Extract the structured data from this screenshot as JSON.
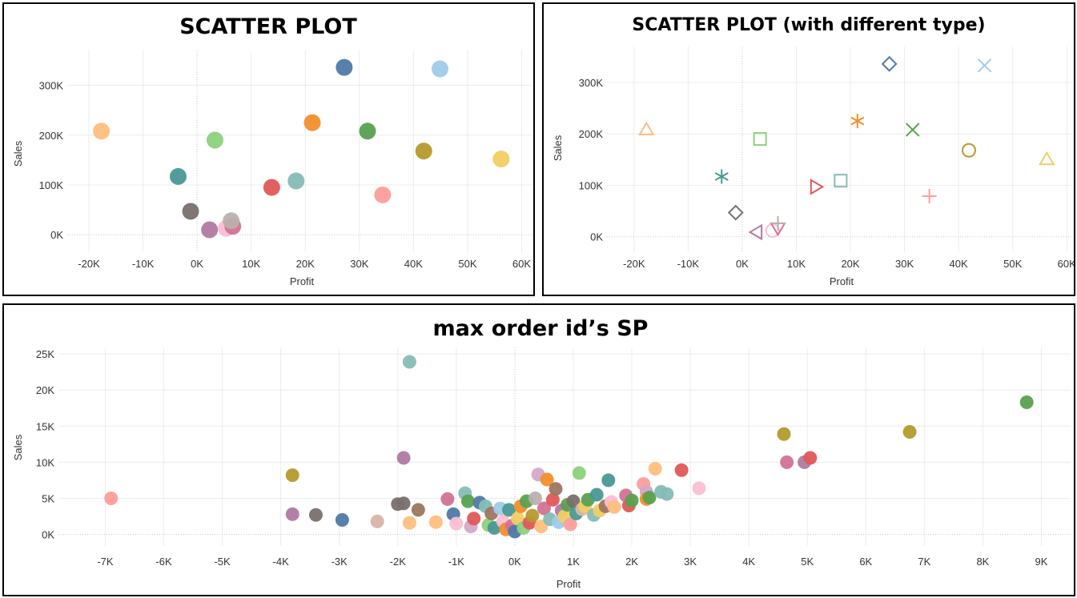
{
  "chart_data": [
    {
      "type": "scatter",
      "title": "SCATTER PLOT",
      "xlabel": "Profit",
      "ylabel": "Sales",
      "xlim": [
        -24000,
        62000
      ],
      "ylim": [
        -35000,
        370000
      ],
      "xticks": [
        -20000,
        -10000,
        0,
        10000,
        20000,
        30000,
        40000,
        50000,
        60000
      ],
      "xtick_labels": [
        "-20K",
        "-10K",
        "0K",
        "10K",
        "20K",
        "30K",
        "40K",
        "50K",
        "60K"
      ],
      "yticks": [
        0,
        100000,
        200000,
        300000
      ],
      "ytick_labels": [
        "0K",
        "100K",
        "200K",
        "300K"
      ],
      "grid": true,
      "legend": "none",
      "points": [
        {
          "x": -17700,
          "y": 208000,
          "color": "#ffbe7d"
        },
        {
          "x": -3500,
          "y": 117000,
          "color": "#499894"
        },
        {
          "x": -1200,
          "y": 47000,
          "color": "#79706e"
        },
        {
          "x": 2300,
          "y": 10000,
          "color": "#b07aa1"
        },
        {
          "x": 3300,
          "y": 190000,
          "color": "#8cd17d"
        },
        {
          "x": 5400,
          "y": 13000,
          "color": "#fabfd2"
        },
        {
          "x": 6600,
          "y": 17000,
          "color": "#d37295"
        },
        {
          "x": 6300,
          "y": 28000,
          "color": "#bab0ac"
        },
        {
          "x": 13800,
          "y": 95000,
          "color": "#e15759"
        },
        {
          "x": 18300,
          "y": 108000,
          "color": "#86bcb6"
        },
        {
          "x": 21300,
          "y": 225000,
          "color": "#f28e2b"
        },
        {
          "x": 27200,
          "y": 336000,
          "color": "#4e79a7"
        },
        {
          "x": 31500,
          "y": 208000,
          "color": "#59a14f"
        },
        {
          "x": 34300,
          "y": 80000,
          "color": "#ff9d9a"
        },
        {
          "x": 41900,
          "y": 168000,
          "color": "#b6992d"
        },
        {
          "x": 44900,
          "y": 333000,
          "color": "#a0cbe8"
        },
        {
          "x": 56200,
          "y": 152000,
          "color": "#f1ce63"
        }
      ]
    },
    {
      "type": "scatter",
      "title": "SCATTER PLOT (with different type)",
      "xlabel": "Profit",
      "ylabel": "Sales",
      "xlim": [
        -25000,
        61000
      ],
      "ylim": [
        -30000,
        370000
      ],
      "xticks": [
        -20000,
        -10000,
        0,
        10000,
        20000,
        30000,
        40000,
        50000,
        60000
      ],
      "xtick_labels": [
        "-20K",
        "-10K",
        "0K",
        "10K",
        "20K",
        "30K",
        "40K",
        "50K",
        "60K"
      ],
      "yticks": [
        0,
        100000,
        200000,
        300000
      ],
      "ytick_labels": [
        "0K",
        "100K",
        "200K",
        "300K"
      ],
      "grid": true,
      "legend": "none",
      "points": [
        {
          "x": -17700,
          "y": 208000,
          "color": "#ffbe7d",
          "shape": "triangle-up"
        },
        {
          "x": -3800,
          "y": 117000,
          "color": "#499894",
          "shape": "asterisk"
        },
        {
          "x": -1200,
          "y": 47000,
          "color": "#79706e",
          "shape": "diamond"
        },
        {
          "x": 3300,
          "y": 190000,
          "color": "#8cd17d",
          "shape": "square"
        },
        {
          "x": 2700,
          "y": 9000,
          "color": "#b07aa1",
          "shape": "triangle-left"
        },
        {
          "x": 5600,
          "y": 12000,
          "color": "#fabfd2",
          "shape": "circle"
        },
        {
          "x": 6600,
          "y": 17000,
          "color": "#d37295",
          "shape": "triangle-down"
        },
        {
          "x": 6600,
          "y": 26000,
          "color": "#bab0ac",
          "shape": "plus"
        },
        {
          "x": 13600,
          "y": 97000,
          "color": "#e15759",
          "shape": "triangle-right"
        },
        {
          "x": 18200,
          "y": 109000,
          "color": "#86bcb6",
          "shape": "square"
        },
        {
          "x": 21300,
          "y": 225000,
          "color": "#f28e2b",
          "shape": "asterisk"
        },
        {
          "x": 27200,
          "y": 336000,
          "color": "#4e79a7",
          "shape": "diamond"
        },
        {
          "x": 31500,
          "y": 208000,
          "color": "#59a14f",
          "shape": "cross"
        },
        {
          "x": 34600,
          "y": 79000,
          "color": "#ff9d9a",
          "shape": "plus"
        },
        {
          "x": 41900,
          "y": 168000,
          "color": "#b6992d",
          "shape": "circle"
        },
        {
          "x": 44800,
          "y": 333000,
          "color": "#a0cbe8",
          "shape": "cross"
        },
        {
          "x": 56300,
          "y": 150000,
          "color": "#f1ce63",
          "shape": "triangle-up"
        }
      ]
    },
    {
      "type": "scatter",
      "title": "max order id’s SP",
      "xlabel": "Profit",
      "ylabel": "Sales",
      "xlim": [
        -7800,
        9500
      ],
      "ylim": [
        -1600,
        25900
      ],
      "xticks": [
        -7000,
        -6000,
        -5000,
        -4000,
        -3000,
        -2000,
        -1000,
        0,
        1000,
        2000,
        3000,
        4000,
        5000,
        6000,
        7000,
        8000,
        9000
      ],
      "xtick_labels": [
        "-7K",
        "-6K",
        "-5K",
        "-4K",
        "-3K",
        "-2K",
        "-1K",
        "0K",
        "1K",
        "2K",
        "3K",
        "4K",
        "5K",
        "6K",
        "7K",
        "8K",
        "9K"
      ],
      "yticks": [
        0,
        5000,
        10000,
        15000,
        20000,
        25000
      ],
      "ytick_labels": [
        "0K",
        "5K",
        "10K",
        "15K",
        "20K",
        "25K"
      ],
      "grid": true,
      "legend": "none",
      "points": [
        {
          "x": -6900,
          "y": 5000,
          "color": "#ff9d9a"
        },
        {
          "x": -3800,
          "y": 8200,
          "color": "#b6992d"
        },
        {
          "x": -3800,
          "y": 2800,
          "color": "#b07aa1"
        },
        {
          "x": -3400,
          "y": 2700,
          "color": "#79706e"
        },
        {
          "x": -2950,
          "y": 2000,
          "color": "#4e79a7"
        },
        {
          "x": -2350,
          "y": 1800,
          "color": "#d7b5a6"
        },
        {
          "x": -2000,
          "y": 4200,
          "color": "#79706e"
        },
        {
          "x": -1900,
          "y": 4300,
          "color": "#79706e"
        },
        {
          "x": -1900,
          "y": 10600,
          "color": "#b07aa1"
        },
        {
          "x": -1800,
          "y": 23900,
          "color": "#86bcb6"
        },
        {
          "x": -1800,
          "y": 1600,
          "color": "#ffbe7d"
        },
        {
          "x": -1650,
          "y": 3400,
          "color": "#9d7660"
        },
        {
          "x": -1350,
          "y": 1700,
          "color": "#ffbe7d"
        },
        {
          "x": -1150,
          "y": 4900,
          "color": "#d37295"
        },
        {
          "x": -1050,
          "y": 2800,
          "color": "#4e79a7"
        },
        {
          "x": -1000,
          "y": 1500,
          "color": "#fabfd2"
        },
        {
          "x": -850,
          "y": 5700,
          "color": "#86bcb6"
        },
        {
          "x": -800,
          "y": 4600,
          "color": "#59a14f"
        },
        {
          "x": -750,
          "y": 1100,
          "color": "#d4a6c8"
        },
        {
          "x": -700,
          "y": 2200,
          "color": "#e15759"
        },
        {
          "x": -600,
          "y": 4400,
          "color": "#4e79a7"
        },
        {
          "x": -500,
          "y": 3900,
          "color": "#86bcb6"
        },
        {
          "x": -450,
          "y": 1300,
          "color": "#8cd17d"
        },
        {
          "x": -400,
          "y": 2900,
          "color": "#9d7660"
        },
        {
          "x": -350,
          "y": 900,
          "color": "#499894"
        },
        {
          "x": -250,
          "y": 3600,
          "color": "#a0cbe8"
        },
        {
          "x": -200,
          "y": 1800,
          "color": "#fabfd2"
        },
        {
          "x": -150,
          "y": 700,
          "color": "#f28e2b"
        },
        {
          "x": -100,
          "y": 3400,
          "color": "#499894"
        },
        {
          "x": -50,
          "y": 1200,
          "color": "#d37295"
        },
        {
          "x": 0,
          "y": 400,
          "color": "#4e79a7"
        },
        {
          "x": 50,
          "y": 2200,
          "color": "#f1ce63"
        },
        {
          "x": 100,
          "y": 3900,
          "color": "#f28e2b"
        },
        {
          "x": 150,
          "y": 900,
          "color": "#8cd17d"
        },
        {
          "x": 200,
          "y": 4600,
          "color": "#59a14f"
        },
        {
          "x": 250,
          "y": 1600,
          "color": "#e15759"
        },
        {
          "x": 300,
          "y": 2600,
          "color": "#b6992d"
        },
        {
          "x": 350,
          "y": 5000,
          "color": "#bab0ac"
        },
        {
          "x": 400,
          "y": 8300,
          "color": "#d4a6c8"
        },
        {
          "x": 450,
          "y": 1100,
          "color": "#ffbe7d"
        },
        {
          "x": 500,
          "y": 3600,
          "color": "#d37295"
        },
        {
          "x": 550,
          "y": 7600,
          "color": "#f28e2b"
        },
        {
          "x": 600,
          "y": 2100,
          "color": "#86bcb6"
        },
        {
          "x": 650,
          "y": 4800,
          "color": "#e15759"
        },
        {
          "x": 700,
          "y": 6300,
          "color": "#9d7660"
        },
        {
          "x": 750,
          "y": 1700,
          "color": "#a0cbe8"
        },
        {
          "x": 800,
          "y": 3300,
          "color": "#b07aa1"
        },
        {
          "x": 850,
          "y": 2500,
          "color": "#f1ce63"
        },
        {
          "x": 900,
          "y": 4100,
          "color": "#59a14f"
        },
        {
          "x": 950,
          "y": 1400,
          "color": "#ff9d9a"
        },
        {
          "x": 1000,
          "y": 4600,
          "color": "#79706e"
        },
        {
          "x": 1050,
          "y": 2900,
          "color": "#499894"
        },
        {
          "x": 1100,
          "y": 8500,
          "color": "#8cd17d"
        },
        {
          "x": 1150,
          "y": 3500,
          "color": "#d7b5a6"
        },
        {
          "x": 1200,
          "y": 3900,
          "color": "#f1ce63"
        },
        {
          "x": 1250,
          "y": 4800,
          "color": "#59a14f"
        },
        {
          "x": 1350,
          "y": 2700,
          "color": "#86bcb6"
        },
        {
          "x": 1400,
          "y": 5500,
          "color": "#499894"
        },
        {
          "x": 1450,
          "y": 3300,
          "color": "#f1ce63"
        },
        {
          "x": 1550,
          "y": 3900,
          "color": "#9d7660"
        },
        {
          "x": 1600,
          "y": 7500,
          "color": "#499894"
        },
        {
          "x": 1650,
          "y": 4500,
          "color": "#fabfd2"
        },
        {
          "x": 1700,
          "y": 3800,
          "color": "#ffbe7d"
        },
        {
          "x": 1900,
          "y": 5400,
          "color": "#d37295"
        },
        {
          "x": 1950,
          "y": 4000,
          "color": "#e15759"
        },
        {
          "x": 2000,
          "y": 4700,
          "color": "#59a14f"
        },
        {
          "x": 2200,
          "y": 7000,
          "color": "#ff9d9a"
        },
        {
          "x": 2250,
          "y": 5900,
          "color": "#d4a6c8"
        },
        {
          "x": 2250,
          "y": 4900,
          "color": "#f28e2b"
        },
        {
          "x": 2300,
          "y": 5100,
          "color": "#59a14f"
        },
        {
          "x": 2400,
          "y": 9100,
          "color": "#ffbe7d"
        },
        {
          "x": 2500,
          "y": 5900,
          "color": "#86bcb6"
        },
        {
          "x": 2600,
          "y": 5600,
          "color": "#86bcb6"
        },
        {
          "x": 2850,
          "y": 8900,
          "color": "#e15759"
        },
        {
          "x": 3150,
          "y": 6400,
          "color": "#fabfd2"
        },
        {
          "x": 4600,
          "y": 13900,
          "color": "#b6992d"
        },
        {
          "x": 4650,
          "y": 10000,
          "color": "#d37295"
        },
        {
          "x": 4950,
          "y": 10000,
          "color": "#b07aa1"
        },
        {
          "x": 5050,
          "y": 10600,
          "color": "#e15759"
        },
        {
          "x": 6750,
          "y": 14200,
          "color": "#b6992d"
        },
        {
          "x": 8750,
          "y": 18300,
          "color": "#59a14f"
        }
      ]
    }
  ]
}
